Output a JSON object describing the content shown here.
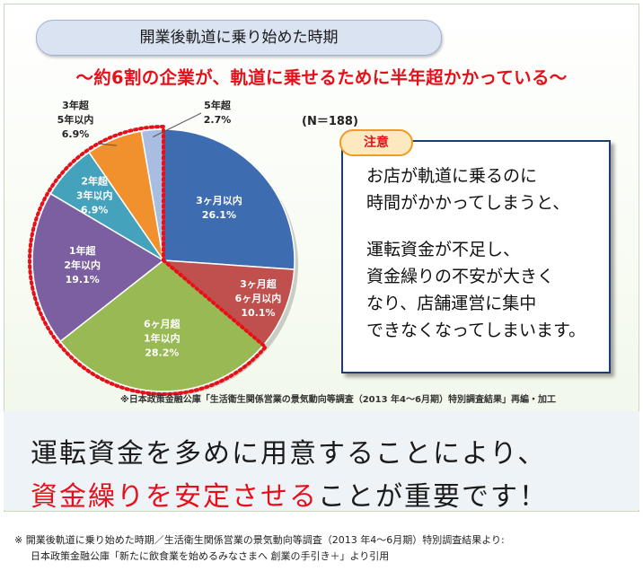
{
  "header": {
    "title": "開業後軌道に乗り始めた時期",
    "subtitle": "～約6割の企業が、軌道に乗せるために半年超かかっている～"
  },
  "chart_data": {
    "type": "pie",
    "n_label": "(N＝188)",
    "slices": [
      {
        "label_lines": [
          "3ヶ月以内",
          "26.1%"
        ],
        "value": 26.1,
        "color": "#3e6cb0",
        "text_color": "#ffffff"
      },
      {
        "label_lines": [
          "3ヶ月超",
          "6ヶ月以内",
          "10.1%"
        ],
        "value": 10.1,
        "color": "#c0504d",
        "text_color": "#ffffff"
      },
      {
        "label_lines": [
          "6ヶ月超",
          "1年以内",
          "28.2%"
        ],
        "value": 28.2,
        "color": "#98b954",
        "text_color": "#ffffff"
      },
      {
        "label_lines": [
          "1年超",
          "2年以内",
          "19.1%"
        ],
        "value": 19.1,
        "color": "#7c5fa0",
        "text_color": "#ffffff"
      },
      {
        "label_lines": [
          "2年超",
          "3年以内",
          "6.9%"
        ],
        "value": 6.9,
        "color": "#44a2bd",
        "text_color": "#ffffff"
      },
      {
        "label_lines": [
          "3年超",
          "5年以内",
          "6.9%"
        ],
        "value": 6.9,
        "color": "#f0912d",
        "text_color": "#222222"
      },
      {
        "label_lines": [
          "5年超",
          "2.7%"
        ],
        "value": 2.7,
        "color": "#a9bde2",
        "text_color": "#222222"
      }
    ],
    "highlight_color": "#e6101a"
  },
  "note": {
    "badge": "注意",
    "lines": [
      "お店が軌道に乗るのに",
      "時間がかかってしまうと、",
      "運転資金が不足し、",
      "資金繰りの不安が大きく",
      "なり、店舗運営に集中",
      "できなくなってしまいます。"
    ]
  },
  "source": "※日本政策金融公庫「生活衛生関係営業の景気動向等調査（2013 年4～6月期）特別調査結果」再編・加工",
  "bottom": {
    "line1": "運転資金を多めに用意することにより、",
    "line2_red": "資金繰りを安定させる",
    "line2_rest": "ことが重要です！"
  },
  "footnote": {
    "line1": "※  開業後軌道に乗り始めた時期／生活衛生関係営業の景気動向等調査（2013 年4～6月期）特別調査結果より:",
    "line2": "日本政策金融公庫「新たに飲食業を始めるみなさまへ  創業の手引き＋」より引用"
  }
}
